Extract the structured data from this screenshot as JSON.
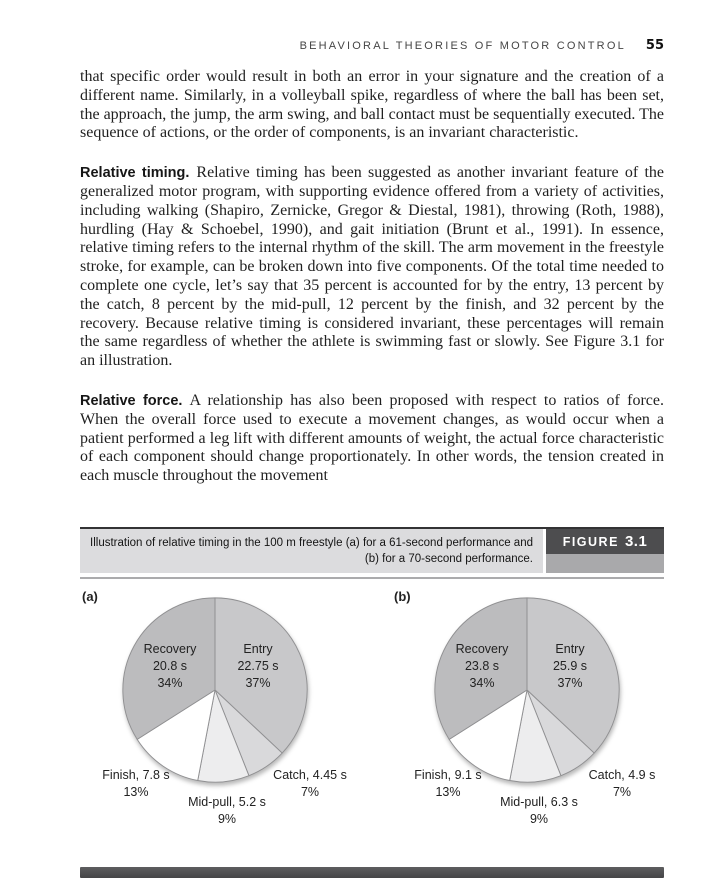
{
  "header": {
    "title": "BEHAVIORAL THEORIES OF MOTOR CONTROL",
    "page_number": "55"
  },
  "paragraphs": [
    {
      "lead": "",
      "text": "that specific order would result in both an error in your signature and the creation of a different name. Similarly, in a volleyball spike, regardless of where the ball has been set, the approach, the jump, the arm swing, and ball contact must be sequentially executed. The sequence of actions, or the order of components, is an invariant characteristic."
    },
    {
      "lead": "Relative timing.",
      "text": "Relative timing has been suggested as another invariant feature of the generalized motor program, with supporting evidence offered from a variety of activities, including walking (Shapiro, Zernicke, Gregor & Diestal, 1981), throwing (Roth, 1988), hurdling (Hay & Schoebel, 1990), and gait initiation (Brunt et al., 1991). In essence, relative timing refers to the internal rhythm of the skill. The arm movement in the freestyle stroke, for example, can be broken down into five components. Of the total time needed to complete one cycle, let’s say that 35 percent is accounted for by the entry, 13 percent by the catch, 8 percent by the mid-pull, 12 percent by the finish, and 32 percent by the recovery. Because relative timing is considered invariant, these percentages will remain the same regardless of whether the athlete is swimming fast or slowly. See Figure 3.1 for an illustration."
    },
    {
      "lead": "Relative force.",
      "text": "A relationship has also been proposed with respect to ratios of force. When the overall force used to execute a movement changes, as would occur when a patient performed a leg lift with different amounts of weight, the actual force characteristic of each component should change proportionately. In other words, the tension created in each muscle throughout the movement"
    }
  ],
  "figure": {
    "caption_line1": "Illustration of relative timing in the 100 m freestyle (a) for a 61-second performance and",
    "caption_line2": "(b) for a 70-second performance.",
    "label_word": "FIGURE",
    "label_number": "3.1",
    "colors": {
      "caption_band": "#dcdcde",
      "tab_dark": "#4d4d4f",
      "tab_gray": "#a9a9ab",
      "top_rule": "#333335",
      "pie_stroke": "#909092"
    }
  },
  "chart_data": [
    {
      "type": "pie",
      "panel": "(a)",
      "title": "61-second performance",
      "total_seconds": 61,
      "start_angle_deg": 0,
      "direction": "clockwise",
      "slices": [
        {
          "name": "Entry",
          "time": "22.75 s",
          "pct": "37%",
          "value": 37,
          "seconds": 22.75,
          "color": "#c8c8ca",
          "placement": "inside"
        },
        {
          "name": "Catch",
          "time": "4.45 s",
          "pct": "7%",
          "value": 7,
          "seconds": 4.45,
          "color": "#d9d9db",
          "placement": "outside",
          "outside_label": "Catch, 4.45 s"
        },
        {
          "name": "Mid-pull",
          "time": "5.2 s",
          "pct": "9%",
          "value": 9,
          "seconds": 5.2,
          "color": "#ededee",
          "placement": "outside",
          "outside_label": "Mid-pull, 5.2 s"
        },
        {
          "name": "Finish",
          "time": "7.8 s",
          "pct": "13%",
          "value": 13,
          "seconds": 7.8,
          "color": "#ffffff",
          "placement": "outside",
          "outside_label": "Finish, 7.8 s"
        },
        {
          "name": "Recovery",
          "time": "20.8 s",
          "pct": "34%",
          "value": 34,
          "seconds": 20.8,
          "color": "#bcbcbe",
          "placement": "inside"
        }
      ]
    },
    {
      "type": "pie",
      "panel": "(b)",
      "title": "70-second performance",
      "total_seconds": 70,
      "start_angle_deg": 0,
      "direction": "clockwise",
      "slices": [
        {
          "name": "Entry",
          "time": "25.9 s",
          "pct": "37%",
          "value": 37,
          "seconds": 25.9,
          "color": "#c8c8ca",
          "placement": "inside"
        },
        {
          "name": "Catch",
          "time": "4.9 s",
          "pct": "7%",
          "value": 7,
          "seconds": 4.9,
          "color": "#d9d9db",
          "placement": "outside",
          "outside_label": "Catch, 4.9 s"
        },
        {
          "name": "Mid-pull",
          "time": "6.3 s",
          "pct": "9%",
          "value": 9,
          "seconds": 6.3,
          "color": "#ededee",
          "placement": "outside",
          "outside_label": "Mid-pull, 6.3 s"
        },
        {
          "name": "Finish",
          "time": "9.1 s",
          "pct": "13%",
          "value": 13,
          "seconds": 9.1,
          "color": "#ffffff",
          "placement": "outside",
          "outside_label": "Finish, 9.1 s"
        },
        {
          "name": "Recovery",
          "time": "23.8 s",
          "pct": "34%",
          "value": 34,
          "seconds": 23.8,
          "color": "#bcbcbe",
          "placement": "inside"
        }
      ]
    }
  ]
}
